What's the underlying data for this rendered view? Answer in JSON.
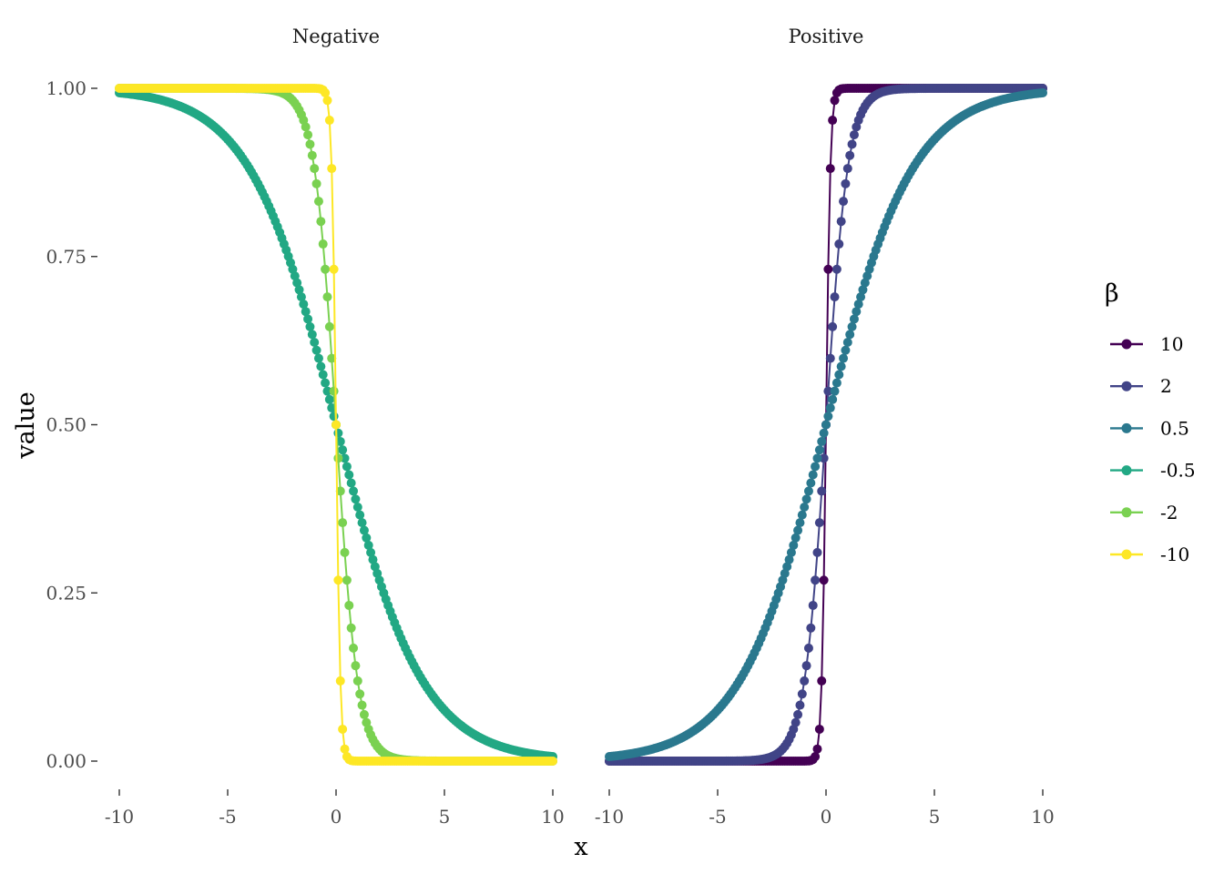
{
  "chart_data": {
    "type": "line",
    "xlabel": "x",
    "ylabel": "value",
    "panels": [
      {
        "title": "Negative",
        "betas": [
          "-0.5",
          "-2",
          "-10"
        ]
      },
      {
        "title": "Positive",
        "betas": [
          "10",
          "2",
          "0.5"
        ]
      }
    ],
    "x_range": [
      -10,
      10
    ],
    "x_step": 0.1,
    "ylim": [
      0,
      1
    ],
    "x_ticks": [
      -10,
      -5,
      0,
      5,
      10
    ],
    "y_ticks": [
      0,
      0.25,
      0.5,
      0.75,
      1
    ],
    "y_tick_labels": [
      "0.00",
      "0.25",
      "0.50",
      "0.75",
      "1.00"
    ],
    "function": "logistic: value = 1 / (1 + exp(-beta * x))",
    "markers": "points with connecting lines",
    "grid": false,
    "legend": {
      "title": "β",
      "position": "right",
      "series": [
        {
          "name": "10",
          "beta": 10,
          "color": "#440154"
        },
        {
          "name": "2",
          "beta": 2,
          "color": "#414487"
        },
        {
          "name": "0.5",
          "beta": 0.5,
          "color": "#2A788E"
        },
        {
          "name": "-0.5",
          "beta": -0.5,
          "color": "#22A884"
        },
        {
          "name": "-2",
          "beta": -2,
          "color": "#7AD151"
        },
        {
          "name": "-10",
          "beta": -10,
          "color": "#FDE725"
        }
      ]
    }
  }
}
